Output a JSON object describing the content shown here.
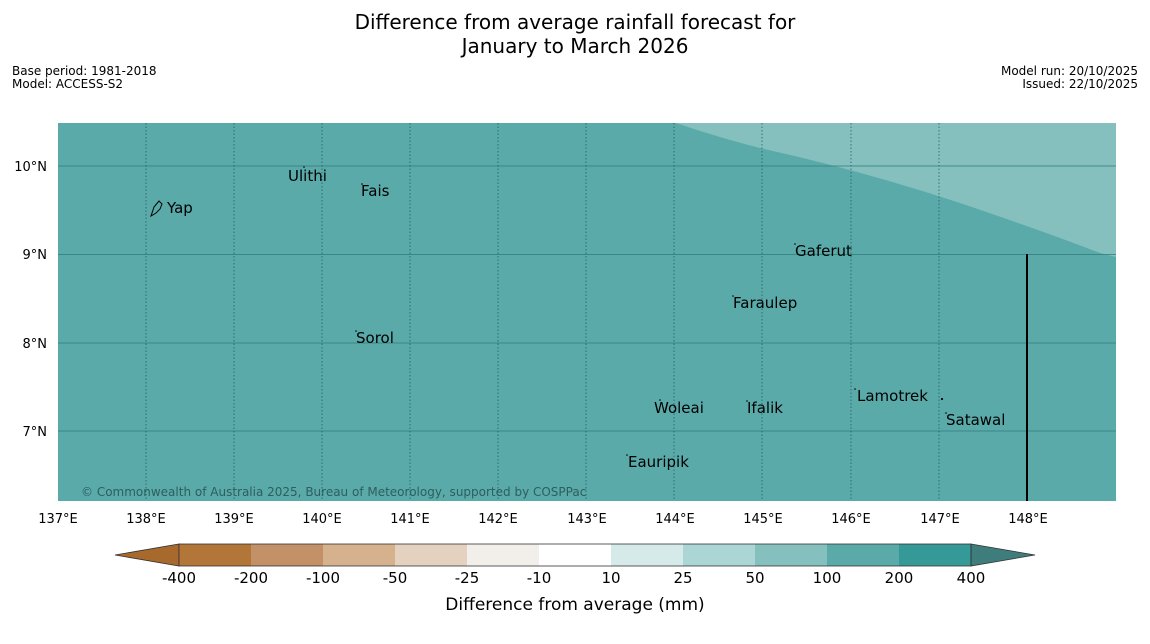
{
  "title": {
    "line1": "Difference from average rainfall forecast for",
    "line2": "January to March 2026"
  },
  "meta_left": {
    "base_period": "Base period: 1981-2018",
    "model": "Model: ACCESS-S2"
  },
  "meta_right": {
    "model_run": "Model run: 20/10/2025",
    "issued": "Issued: 22/10/2025"
  },
  "map": {
    "lat_labels": [
      "10°N",
      "9°N",
      "8°N",
      "7°N"
    ],
    "lon_labels": [
      "137°E",
      "138°E",
      "139°E",
      "140°E",
      "141°E",
      "142°E",
      "143°E",
      "144°E",
      "145°E",
      "146°E",
      "147°E",
      "148°E"
    ],
    "places": [
      {
        "name": "Ulithi"
      },
      {
        "name": "Fais"
      },
      {
        "name": "Yap"
      },
      {
        "name": "Gaferut"
      },
      {
        "name": "Faraulep"
      },
      {
        "name": "Sorol"
      },
      {
        "name": "Lamotrek"
      },
      {
        "name": "Woleai"
      },
      {
        "name": "Ifalik"
      },
      {
        "name": "Satawal"
      },
      {
        "name": "Eauripik"
      }
    ],
    "copyright": "© Commonwealth of Australia 2025, Bureau of Meteorology, supported by COSPPac",
    "colors": {
      "main_fill": "#5aaaaa",
      "light_fill": "#85c0bf",
      "grid": "#2f7a7a"
    }
  },
  "legend": {
    "label": "Difference from average (mm)",
    "ticks": [
      "-400",
      "-200",
      "-100",
      "-50",
      "-25",
      "-10",
      "10",
      "25",
      "50",
      "100",
      "200",
      "400"
    ],
    "colors": [
      "#a8692d",
      "#b37639",
      "#c39168",
      "#d6b18e",
      "#e5d1c0",
      "#f2efea",
      "#ffffff",
      "#d6ebe9",
      "#acd6d5",
      "#85c0bf",
      "#5aaaaa",
      "#359998",
      "#3e7d7b"
    ]
  }
}
